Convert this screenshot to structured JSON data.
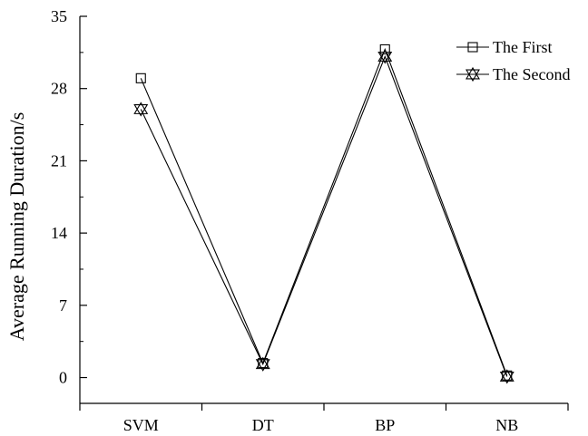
{
  "chart_data": {
    "type": "line",
    "title": "",
    "xlabel": "",
    "ylabel": "Average Running Duration/s",
    "categories": [
      "SVM",
      "DT",
      "BP",
      "NB"
    ],
    "ylim": [
      -2.5,
      35
    ],
    "yticks": [
      0,
      7,
      14,
      21,
      28,
      35
    ],
    "grid": false,
    "legend_position": "top-right",
    "series": [
      {
        "name": "The First",
        "marker": "square",
        "color": "#000000",
        "values": [
          29.0,
          1.4,
          31.8,
          0.2
        ]
      },
      {
        "name": "The Second",
        "marker": "star-triangle",
        "color": "#000000",
        "values": [
          26.0,
          1.3,
          31.1,
          0.1
        ]
      }
    ]
  }
}
